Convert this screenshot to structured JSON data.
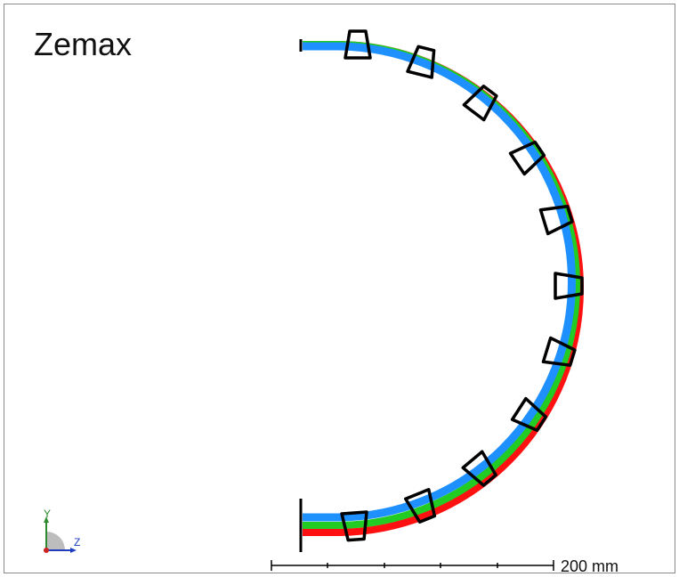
{
  "title": "Zemax",
  "scale_bar": {
    "label": "200 mm",
    "divisions": 5
  },
  "axes_indicator": {
    "y_label": "Y",
    "z_label": "Z"
  },
  "beams": {
    "colors": {
      "red": "#ff1111",
      "green": "#22cc22",
      "blue": "#1e90ff"
    },
    "element_count": 11
  }
}
